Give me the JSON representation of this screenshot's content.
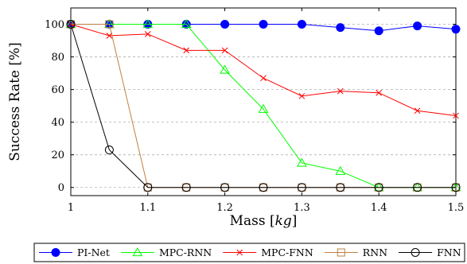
{
  "chart_data": {
    "type": "line",
    "xlabel": "Mass [kg]",
    "xlabel_parts": [
      "Mass [",
      "kg",
      "]"
    ],
    "ylabel": "Success Rate [%]",
    "xlim": [
      1.0,
      1.5
    ],
    "ylim": [
      -5,
      110
    ],
    "xticks": [
      1.0,
      1.1,
      1.2,
      1.3,
      1.4,
      1.5
    ],
    "xtick_labels": [
      "1",
      "1.1",
      "1.2",
      "1.3",
      "1.4",
      "1.5"
    ],
    "yticks": [
      0,
      20,
      40,
      60,
      80,
      100
    ],
    "ytick_labels": [
      "0",
      "20",
      "40",
      "60",
      "80",
      "100"
    ],
    "grid": "horizontal dashed",
    "legend_placement": "bottom",
    "series": [
      {
        "name": "PI-Net",
        "color": "#0000ff",
        "marker": "filled-circle",
        "x": [
          1.0,
          1.05,
          1.1,
          1.15,
          1.2,
          1.25,
          1.3,
          1.35,
          1.4,
          1.45,
          1.5
        ],
        "y": [
          100,
          100,
          100,
          100,
          100,
          100,
          100,
          98,
          96,
          99,
          97
        ]
      },
      {
        "name": "MPC-RNN",
        "color": "#00ff00",
        "marker": "triangle",
        "x": [
          1.0,
          1.05,
          1.1,
          1.15,
          1.2,
          1.25,
          1.3,
          1.35,
          1.4,
          1.45,
          1.5
        ],
        "y": [
          100,
          100,
          100,
          100,
          72,
          48,
          15,
          10,
          0,
          0,
          0
        ]
      },
      {
        "name": "MPC-FNN",
        "color": "#ff0000",
        "marker": "cross",
        "x": [
          1.0,
          1.05,
          1.1,
          1.15,
          1.2,
          1.25,
          1.3,
          1.35,
          1.4,
          1.45,
          1.5
        ],
        "y": [
          100,
          93,
          94,
          84,
          84,
          67,
          56,
          59,
          58,
          47,
          44
        ]
      },
      {
        "name": "RNN",
        "color": "#bf8040",
        "marker": "square",
        "x": [
          1.0,
          1.05,
          1.1,
          1.15,
          1.2,
          1.25,
          1.3,
          1.35,
          1.4,
          1.45,
          1.5
        ],
        "y": [
          100,
          100,
          0,
          0,
          0,
          0,
          0,
          0,
          0,
          0,
          0
        ]
      },
      {
        "name": "FNN",
        "color": "#000000",
        "marker": "open-circle",
        "x": [
          1.0,
          1.05,
          1.1,
          1.15,
          1.2,
          1.25,
          1.3,
          1.35,
          1.4,
          1.45,
          1.5
        ],
        "y": [
          100,
          23,
          0,
          0,
          0,
          0,
          0,
          0,
          0,
          0,
          0
        ]
      }
    ]
  }
}
